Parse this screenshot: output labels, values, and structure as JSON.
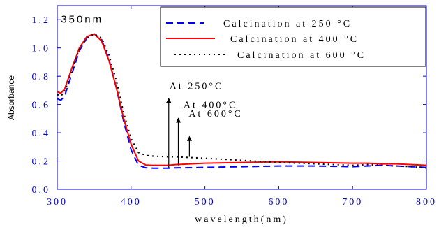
{
  "chart_data": {
    "type": "line",
    "title": "",
    "xlabel": "wavelength(nm)",
    "ylabel": "Absorbance",
    "xlim": [
      300,
      800
    ],
    "ylim": [
      0.0,
      1.3
    ],
    "x_ticks": [
      300,
      400,
      500,
      600,
      700,
      800
    ],
    "x_tick_labels": [
      "300",
      "400",
      "500",
      "600",
      "700",
      "800"
    ],
    "y_ticks": [
      0.0,
      0.2,
      0.4,
      0.6,
      0.8,
      1.0,
      1.2
    ],
    "y_tick_labels": [
      "0.0",
      "0.2",
      "0.4",
      "0.6",
      "0.8",
      "1.0",
      "1.2"
    ],
    "grid": false,
    "legend_position": "top-right",
    "colors": {
      "axis": "#0000cc",
      "s250": "#0000ff",
      "s400": "#ff0000",
      "s600": "#000000"
    },
    "series": [
      {
        "name": "Calcination at 250 °C",
        "style": "dashed",
        "x": [
          300,
          305,
          310,
          320,
          330,
          340,
          350,
          360,
          370,
          380,
          390,
          400,
          410,
          420,
          430,
          440,
          450,
          460,
          480,
          500,
          550,
          600,
          650,
          700,
          720,
          740,
          760,
          780,
          800
        ],
        "y": [
          0.64,
          0.63,
          0.66,
          0.82,
          0.98,
          1.07,
          1.1,
          1.06,
          0.92,
          0.72,
          0.48,
          0.28,
          0.17,
          0.152,
          0.15,
          0.15,
          0.15,
          0.152,
          0.153,
          0.155,
          0.16,
          0.165,
          0.165,
          0.16,
          0.165,
          0.17,
          0.165,
          0.16,
          0.155
        ]
      },
      {
        "name": "Calcination at 400 °C",
        "style": "solid",
        "x": [
          300,
          305,
          310,
          320,
          330,
          340,
          350,
          360,
          370,
          380,
          390,
          400,
          410,
          420,
          430,
          440,
          450,
          460,
          480,
          500,
          550,
          600,
          650,
          700,
          720,
          740,
          760,
          780,
          800
        ],
        "y": [
          0.69,
          0.68,
          0.71,
          0.86,
          1.0,
          1.08,
          1.1,
          1.05,
          0.91,
          0.72,
          0.5,
          0.32,
          0.2,
          0.172,
          0.17,
          0.17,
          0.17,
          0.175,
          0.18,
          0.185,
          0.19,
          0.195,
          0.19,
          0.185,
          0.185,
          0.18,
          0.18,
          0.175,
          0.17
        ]
      },
      {
        "name": "Calcination at 600 °C",
        "style": "dotted",
        "x": [
          300,
          305,
          310,
          320,
          330,
          340,
          350,
          360,
          370,
          380,
          390,
          400,
          410,
          420,
          430,
          440,
          450,
          460,
          480,
          500,
          550,
          600,
          650,
          700,
          720,
          740,
          760,
          780,
          800
        ],
        "y": [
          0.67,
          0.66,
          0.69,
          0.84,
          0.99,
          1.07,
          1.1,
          1.07,
          0.95,
          0.77,
          0.54,
          0.36,
          0.26,
          0.24,
          0.235,
          0.232,
          0.23,
          0.23,
          0.225,
          0.22,
          0.205,
          0.19,
          0.18,
          0.17,
          0.175,
          0.17,
          0.165,
          0.16,
          0.15
        ]
      }
    ],
    "annotations": [
      {
        "text": "350nm",
        "x": 305,
        "y": 1.18
      },
      {
        "text": "At 250°C",
        "x": 452,
        "y": 0.71,
        "arrow_from": [
          451,
          0.15
        ],
        "arrow_to": [
          451,
          0.63
        ]
      },
      {
        "text": "At 400°C",
        "x": 471,
        "y": 0.575,
        "arrow_from": [
          464,
          0.17
        ],
        "arrow_to": [
          464,
          0.49
        ]
      },
      {
        "text": "At 600°C",
        "x": 478,
        "y": 0.515,
        "arrow_from": [
          479,
          0.23
        ],
        "arrow_to": [
          479,
          0.36
        ]
      }
    ]
  }
}
